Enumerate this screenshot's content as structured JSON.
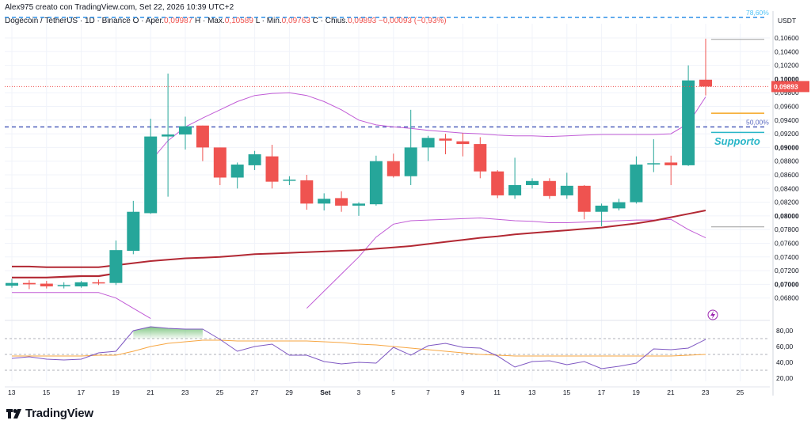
{
  "header": {
    "author_line": "Alex975 creato con TradingView.com, Set 22, 2026 10:39 UTC+2",
    "symbol": "Dogecoin / TetherUS · 1D · Binance",
    "open_label": "O · Aper.",
    "open_value": "0,09987",
    "high_label": "H · Max.",
    "high_value": "0,10589",
    "low_label": "L · Min.",
    "low_value": "0,09763",
    "close_label": "C · Chius.",
    "close_value": "0,09893",
    "change_value": "−0,00093 (−0,93%)"
  },
  "brand": {
    "name": "TradingView"
  },
  "colors": {
    "up": "#26a69a",
    "down": "#ef5350",
    "ma": "#b22833",
    "bb": "#c15cd6",
    "rsi": "#7e57c2",
    "rsi_ma": "#f7a642",
    "fib": "#2962ff",
    "support": "#f5a623",
    "support_text": "#29b6c8"
  },
  "chart_data": [
    {
      "type": "candlestick",
      "title": "",
      "y_unit": "USDT",
      "ylim": [
        0.066,
        0.11
      ],
      "x_tick_labels": [
        "13",
        "15",
        "17",
        "19",
        "21",
        "23",
        "25",
        "27",
        "29",
        "Set",
        "3",
        "5",
        "7",
        "9",
        "11",
        "13",
        "15",
        "17",
        "19",
        "21",
        "23",
        "25"
      ],
      "y_tick_labels": [
        "0,10600",
        "0,10400",
        "0,10200",
        "0,10000",
        "0,09800",
        "0,09600",
        "0,09400",
        "0,09200",
        "0,09000",
        "0,08800",
        "0,08600",
        "0,08400",
        "0,08200",
        "0,08000",
        "0,07800",
        "0,07600",
        "0,07400",
        "0,07200",
        "0,07000",
        "0,06800"
      ],
      "y_tick_values": [
        0.106,
        0.104,
        0.102,
        0.1,
        0.098,
        0.096,
        0.094,
        0.092,
        0.09,
        0.088,
        0.086,
        0.084,
        0.082,
        0.08,
        0.078,
        0.076,
        0.074,
        0.072,
        0.07,
        0.068
      ],
      "bold_ticks": [
        "0,10000",
        "0,09000",
        "0,08000",
        "0,07000"
      ],
      "candles": [
        {
          "date": "Ago 13",
          "o": 0.0698,
          "h": 0.0708,
          "l": 0.0695,
          "c": 0.0702
        },
        {
          "date": "Ago 14",
          "o": 0.0702,
          "h": 0.0706,
          "l": 0.0693,
          "c": 0.07
        },
        {
          "date": "Ago 15",
          "o": 0.0701,
          "h": 0.0705,
          "l": 0.0694,
          "c": 0.0697
        },
        {
          "date": "Ago 16",
          "o": 0.0699,
          "h": 0.0703,
          "l": 0.0694,
          "c": 0.0699
        },
        {
          "date": "Ago 17",
          "o": 0.0697,
          "h": 0.0705,
          "l": 0.0695,
          "c": 0.0703
        },
        {
          "date": "Ago 18",
          "o": 0.0703,
          "h": 0.0707,
          "l": 0.0699,
          "c": 0.0702
        },
        {
          "date": "Ago 19",
          "o": 0.0702,
          "h": 0.0764,
          "l": 0.0699,
          "c": 0.075
        },
        {
          "date": "Ago 20",
          "o": 0.0749,
          "h": 0.0822,
          "l": 0.0744,
          "c": 0.0806
        },
        {
          "date": "Ago 21",
          "o": 0.0804,
          "h": 0.0942,
          "l": 0.0803,
          "c": 0.0916
        },
        {
          "date": "Ago 22",
          "o": 0.0916,
          "h": 0.1008,
          "l": 0.0828,
          "c": 0.0919
        },
        {
          "date": "Ago 23",
          "o": 0.0919,
          "h": 0.0945,
          "l": 0.0897,
          "c": 0.0931
        },
        {
          "date": "Ago 24",
          "o": 0.0932,
          "h": 0.0932,
          "l": 0.088,
          "c": 0.09
        },
        {
          "date": "Ago 25",
          "o": 0.09,
          "h": 0.09,
          "l": 0.0845,
          "c": 0.0856
        },
        {
          "date": "Ago 26",
          "o": 0.0856,
          "h": 0.0878,
          "l": 0.084,
          "c": 0.0875
        },
        {
          "date": "Ago 27",
          "o": 0.0874,
          "h": 0.0895,
          "l": 0.0867,
          "c": 0.089
        },
        {
          "date": "Ago 28",
          "o": 0.0887,
          "h": 0.0904,
          "l": 0.084,
          "c": 0.085
        },
        {
          "date": "Ago 29",
          "o": 0.0852,
          "h": 0.0858,
          "l": 0.0845,
          "c": 0.0853
        },
        {
          "date": "Ago 30",
          "o": 0.0852,
          "h": 0.086,
          "l": 0.0809,
          "c": 0.0818
        },
        {
          "date": "Ago 31",
          "o": 0.0818,
          "h": 0.0833,
          "l": 0.0808,
          "c": 0.0825
        },
        {
          "date": "Set 1",
          "o": 0.0826,
          "h": 0.0836,
          "l": 0.0806,
          "c": 0.0815
        },
        {
          "date": "Set 2",
          "o": 0.0815,
          "h": 0.082,
          "l": 0.08,
          "c": 0.0818
        },
        {
          "date": "Set 3",
          "o": 0.0817,
          "h": 0.0888,
          "l": 0.0815,
          "c": 0.088
        },
        {
          "date": "Set 4",
          "o": 0.088,
          "h": 0.0891,
          "l": 0.0856,
          "c": 0.0858
        },
        {
          "date": "Set 5",
          "o": 0.0858,
          "h": 0.0955,
          "l": 0.0845,
          "c": 0.09
        },
        {
          "date": "Set 6",
          "o": 0.09,
          "h": 0.0917,
          "l": 0.088,
          "c": 0.0914
        },
        {
          "date": "Set 7",
          "o": 0.0913,
          "h": 0.092,
          "l": 0.089,
          "c": 0.091
        },
        {
          "date": "Set 8",
          "o": 0.0909,
          "h": 0.0921,
          "l": 0.0887,
          "c": 0.0905
        },
        {
          "date": "Set 9",
          "o": 0.0905,
          "h": 0.0915,
          "l": 0.0855,
          "c": 0.0865
        },
        {
          "date": "Set 10",
          "o": 0.0865,
          "h": 0.0867,
          "l": 0.0826,
          "c": 0.083
        },
        {
          "date": "Set 11",
          "o": 0.083,
          "h": 0.0885,
          "l": 0.0825,
          "c": 0.0845
        },
        {
          "date": "Set 12",
          "o": 0.0845,
          "h": 0.0855,
          "l": 0.084,
          "c": 0.0851
        },
        {
          "date": "Set 13",
          "o": 0.0851,
          "h": 0.0855,
          "l": 0.0825,
          "c": 0.0829
        },
        {
          "date": "Set 14",
          "o": 0.083,
          "h": 0.0863,
          "l": 0.0825,
          "c": 0.0844
        },
        {
          "date": "Set 15",
          "o": 0.0844,
          "h": 0.0845,
          "l": 0.0795,
          "c": 0.0806
        },
        {
          "date": "Set 16",
          "o": 0.0806,
          "h": 0.0818,
          "l": 0.0785,
          "c": 0.0815
        },
        {
          "date": "Set 17",
          "o": 0.0811,
          "h": 0.0825,
          "l": 0.0808,
          "c": 0.082
        },
        {
          "date": "Set 18",
          "o": 0.082,
          "h": 0.0887,
          "l": 0.0818,
          "c": 0.0875
        },
        {
          "date": "Set 19",
          "o": 0.0876,
          "h": 0.0912,
          "l": 0.0864,
          "c": 0.0877
        },
        {
          "date": "Set 20",
          "o": 0.0878,
          "h": 0.0888,
          "l": 0.0845,
          "c": 0.0874
        },
        {
          "date": "Set 21",
          "o": 0.0874,
          "h": 0.102,
          "l": 0.0873,
          "c": 0.0998
        },
        {
          "date": "Set 22",
          "o": 0.0999,
          "h": 0.1059,
          "l": 0.0976,
          "c": 0.0989
        }
      ],
      "moving_average": [
        0.0726,
        0.0726,
        0.0725,
        0.0725,
        0.0725,
        0.0725,
        0.0728,
        0.0731,
        0.0734,
        0.0736,
        0.0738,
        0.0739,
        0.074,
        0.0742,
        0.0744,
        0.0745,
        0.0746,
        0.0747,
        0.0748,
        0.0749,
        0.075,
        0.0752,
        0.0754,
        0.0756,
        0.0759,
        0.0762,
        0.0765,
        0.0768,
        0.077,
        0.0773,
        0.0775,
        0.0777,
        0.0779,
        0.0781,
        0.0783,
        0.0786,
        0.0789,
        0.0793,
        0.0798,
        0.0803,
        0.0808
      ],
      "bollinger_upper": [
        null,
        null,
        null,
        null,
        null,
        null,
        null,
        null,
        0.088,
        0.091,
        0.093,
        0.0943,
        0.0955,
        0.0967,
        0.0976,
        0.0979,
        0.098,
        0.0976,
        0.0967,
        0.0955,
        0.094,
        0.0933,
        0.093,
        0.0928,
        0.0925,
        0.0923,
        0.0921,
        0.092,
        0.0918,
        0.0917,
        0.0917,
        0.0916,
        0.0917,
        0.0918,
        0.0919,
        0.0919,
        0.0919,
        0.0919,
        0.092,
        0.0935,
        0.0974
      ],
      "bollinger_lower": [
        0.0688,
        0.0688,
        0.0688,
        0.0688,
        0.0688,
        0.0688,
        0.068,
        0.0665,
        0.065,
        null,
        null,
        null,
        null,
        null,
        null,
        null,
        null,
        0.0665,
        0.069,
        0.0715,
        0.074,
        0.0769,
        0.0788,
        0.0793,
        0.0794,
        0.0795,
        0.0796,
        0.0797,
        0.0795,
        0.0793,
        0.0792,
        0.079,
        0.079,
        0.0791,
        0.0792,
        0.0793,
        0.0794,
        0.0794,
        0.0795,
        0.078,
        0.0768
      ],
      "bollinger_lower_early": [
        0.071,
        0.071,
        0.071,
        0.0711,
        0.0712,
        0.0712,
        0.0716
      ],
      "fib_levels": [
        {
          "label": "78,60%",
          "value": 0.109
        },
        {
          "label": "50,00%",
          "value": 0.093
        }
      ],
      "support": {
        "label": "Supporto",
        "value": 0.095
      },
      "current_price_label": "0,09893",
      "current_price": 0.0989
    },
    {
      "type": "line",
      "title": "",
      "ylim": [
        20,
        85
      ],
      "y_tick_labels": [
        "80,00",
        "60,00",
        "40,00",
        "20,00"
      ],
      "y_tick_values": [
        80,
        60,
        40,
        20
      ],
      "bands": [
        70,
        50,
        30
      ],
      "series": [
        {
          "values": [
            45,
            47,
            44,
            43,
            44,
            52,
            54,
            80,
            85,
            83,
            82,
            82,
            69,
            54,
            60,
            63,
            49,
            49,
            41,
            38,
            40,
            39,
            59,
            49,
            61,
            64,
            59,
            58,
            48,
            34,
            41,
            42,
            37,
            41,
            32,
            35,
            39,
            57,
            56,
            58,
            69
          ]
        },
        {
          "values": [
            48,
            48,
            48,
            48,
            48,
            49,
            49,
            54,
            60,
            64,
            66,
            68,
            68,
            67,
            67,
            67,
            67,
            67,
            66,
            65,
            63,
            62,
            60,
            58,
            56,
            54,
            52,
            50,
            49,
            48,
            48,
            48,
            48,
            48,
            48,
            48,
            48,
            48,
            48,
            49,
            50
          ]
        }
      ]
    }
  ]
}
